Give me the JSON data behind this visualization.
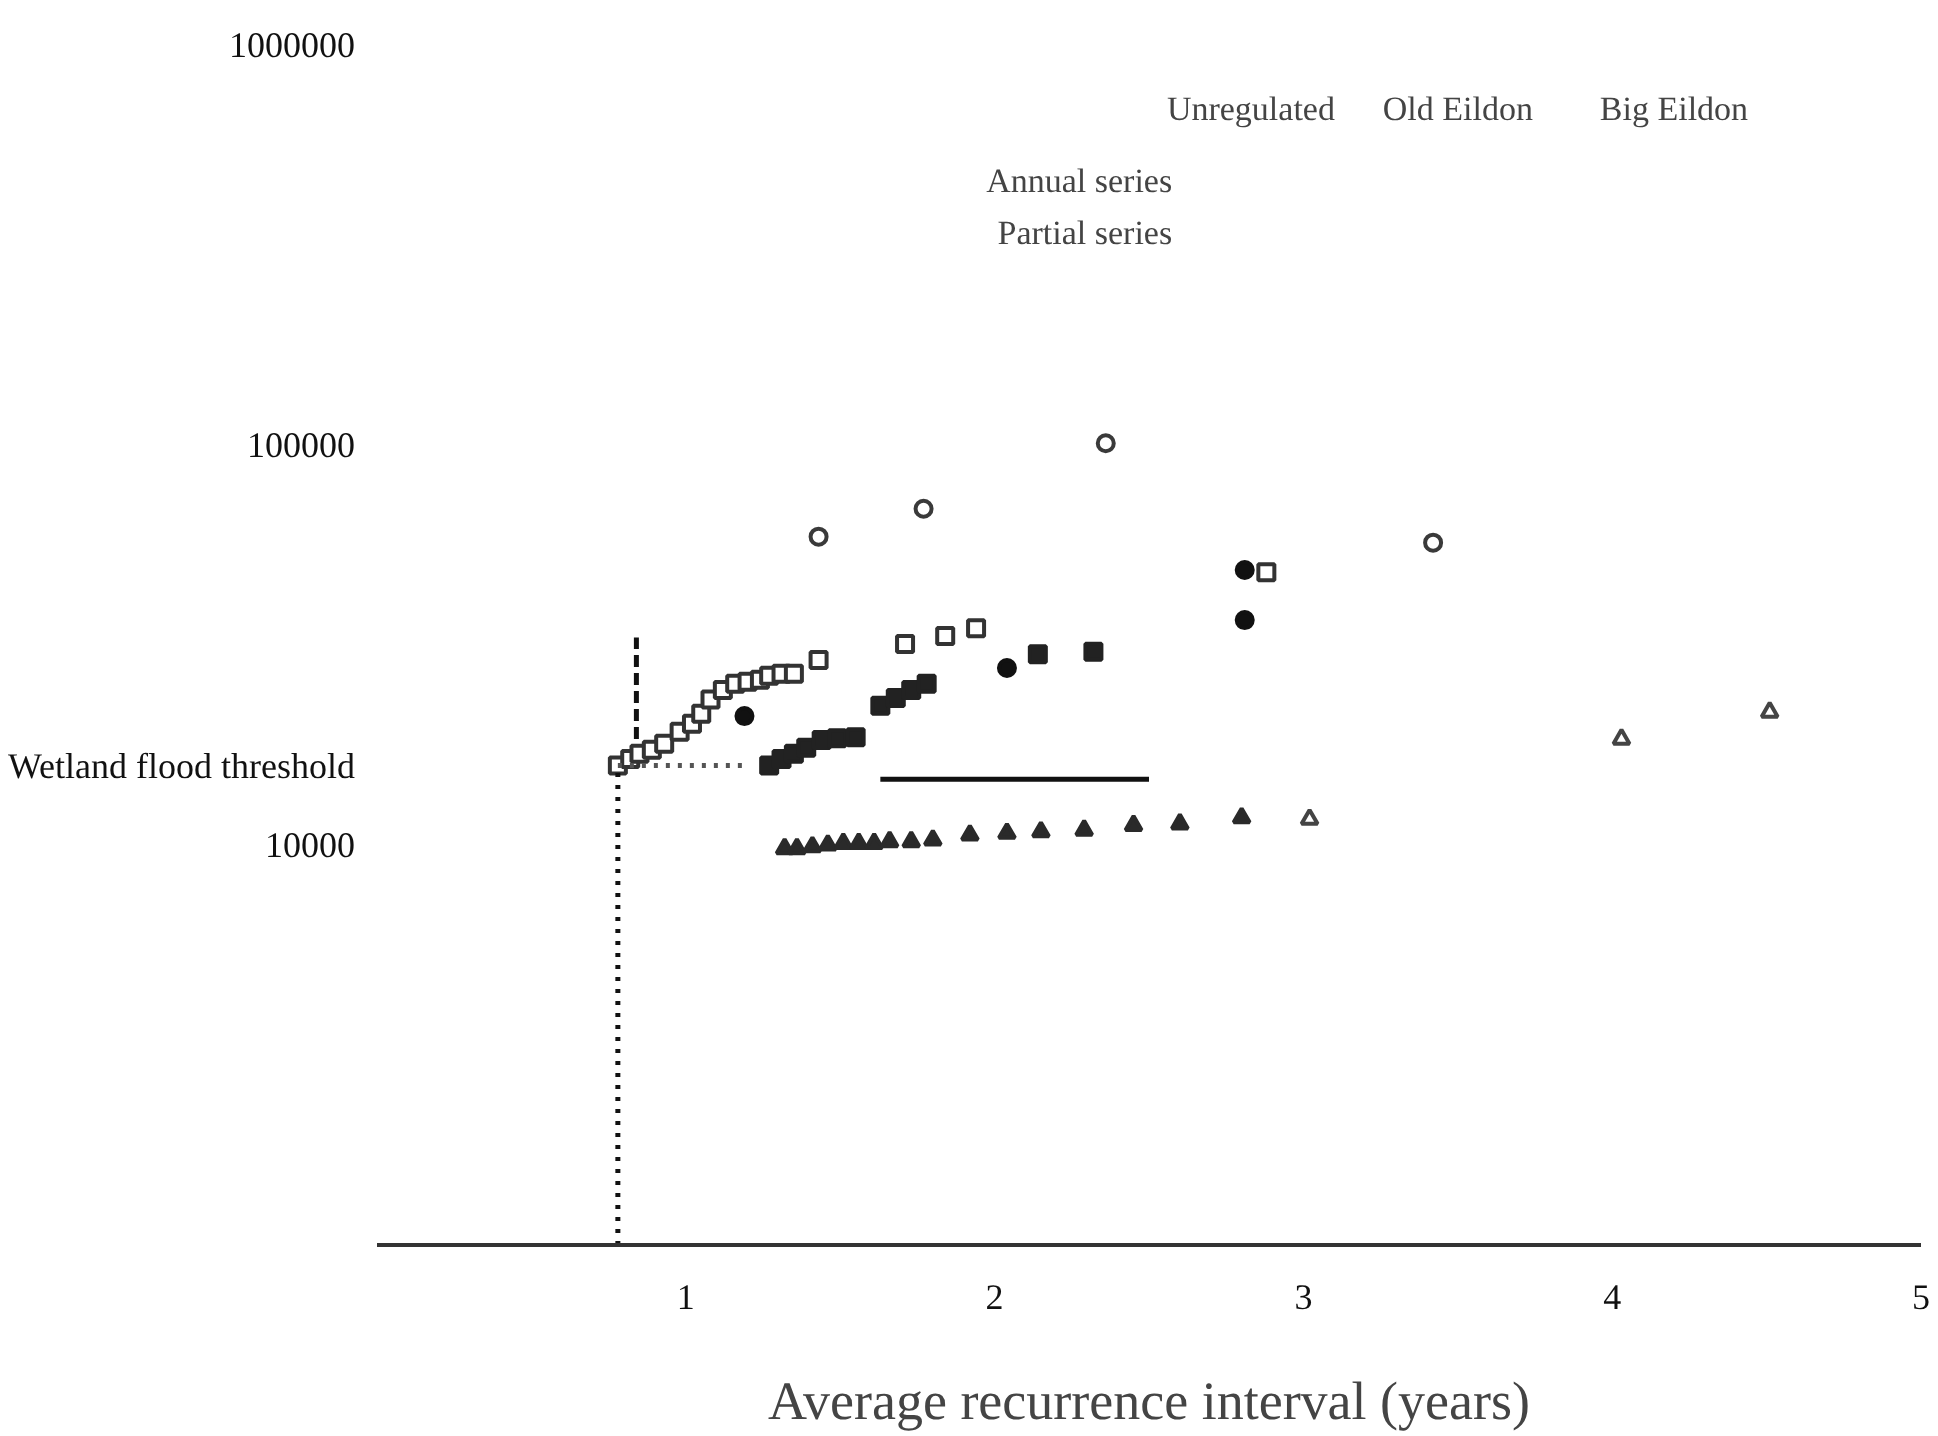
{
  "chart_data": {
    "type": "scatter",
    "xlabel": "Average recurrence interval (years)",
    "xlim": [
      0,
      5
    ],
    "xticks": [
      1,
      2,
      3,
      4,
      5
    ],
    "ylim": [
      1000,
      1000000
    ],
    "yticks": [
      10000,
      100000,
      1000000
    ],
    "log": "y",
    "grid": false,
    "series": [
      {
        "color": "#333333",
        "marker": "square",
        "x": [
          0.78,
          0.82,
          0.85,
          0.89,
          0.93,
          0.98,
          1.02,
          1.05,
          1.08,
          1.12,
          1.16,
          1.2,
          1.24,
          1.27,
          1.31,
          1.35,
          1.43,
          1.71,
          1.84,
          1.94,
          2.88
        ],
        "values": [
          15800,
          16400,
          16900,
          17300,
          17900,
          19200,
          20100,
          21300,
          23100,
          24400,
          25300,
          25600,
          25900,
          26500,
          26800,
          26800,
          29000,
          31800,
          33300,
          34800,
          48100
        ]
      },
      {
        "color": "#222222",
        "marker": "square",
        "x": [
          1.27,
          1.31,
          1.35,
          1.39,
          1.44,
          1.49,
          1.55,
          1.63,
          1.68,
          1.73,
          1.78,
          2.14,
          2.32
        ],
        "values": [
          15800,
          16400,
          16900,
          17500,
          18300,
          18500,
          18600,
          22300,
          23300,
          24400,
          25300,
          30000,
          30400
        ]
      },
      {
        "color": "#2a2a2a",
        "marker": "triangle",
        "x": [
          1.32,
          1.36,
          1.41,
          1.46,
          1.51,
          1.56,
          1.61,
          1.66,
          1.73,
          1.8,
          1.92,
          2.04,
          2.15,
          2.29,
          2.45,
          2.6,
          2.8
        ],
        "values": [
          9800,
          9800,
          9900,
          10000,
          10100,
          10100,
          10100,
          10200,
          10200,
          10300,
          10600,
          10700,
          10800,
          10900,
          11200,
          11300,
          11700
        ]
      },
      {
        "color": "#111111",
        "marker": "circle",
        "x": [
          1.19,
          2.04,
          2.81,
          2.81
        ],
        "values": [
          21000,
          27700,
          48700,
          36500
        ]
      },
      {
        "color": "#3a3a3a",
        "marker": "circle",
        "x": [
          1.43,
          1.77,
          2.36,
          3.42
        ],
        "values": [
          59000,
          69300,
          101000,
          57000
        ]
      },
      {
        "color": "#444444",
        "marker": "triangle",
        "x": [
          3.02,
          4.03,
          4.51
        ],
        "values": [
          11600,
          18400,
          21500
        ]
      },
      {
        "type": "line",
        "color": "#111111",
        "line_style": "solid",
        "x": [
          1.63,
          2.5
        ],
        "values": [
          14600,
          14600
        ]
      },
      {
        "type": "line",
        "color": "#111111",
        "line_style": "dotted",
        "x": [
          0.78,
          0.78
        ],
        "values": [
          1000,
          15800
        ]
      },
      {
        "type": "line",
        "color": "#111111",
        "line_style": "dashed",
        "x": [
          0.84,
          0.84
        ],
        "values": [
          18400,
          33000
        ]
      },
      {
        "type": "line",
        "name": "Wetland flood threshold",
        "color": "#555555",
        "line_style": "dotted",
        "x": [
          0.78,
          1.2
        ],
        "values": [
          15800,
          15800
        ]
      }
    ],
    "annotations": [
      "Unregulated",
      "Old Eildon",
      "Big Eildon",
      "Annual series",
      "Partial series"
    ]
  }
}
